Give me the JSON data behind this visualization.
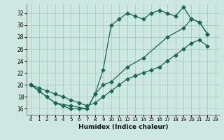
{
  "xlabel": "Humidex (Indice chaleur)",
  "background_color": "#cce8e0",
  "grid_color": "#aaccbb",
  "line_color": "#1a6655",
  "xlim": [
    -0.5,
    23.5
  ],
  "ylim": [
    15.0,
    33.5
  ],
  "yticks": [
    16,
    18,
    20,
    22,
    24,
    26,
    28,
    30,
    32
  ],
  "xticks": [
    0,
    1,
    2,
    3,
    4,
    5,
    6,
    7,
    8,
    9,
    10,
    11,
    12,
    13,
    14,
    15,
    16,
    17,
    18,
    19,
    20,
    21,
    22,
    23
  ],
  "line1_x": [
    0,
    1,
    2,
    3,
    4,
    5,
    6,
    7,
    8,
    9,
    10,
    11,
    12,
    13,
    14,
    15,
    16,
    17,
    18,
    19,
    20,
    21,
    22
  ],
  "line1_y": [
    20,
    19,
    18,
    17,
    16.5,
    16,
    16,
    16,
    18.5,
    22.5,
    30,
    31,
    32,
    31.5,
    31,
    32,
    32.5,
    32,
    31.5,
    33,
    31,
    30.5,
    28.5
  ],
  "line2_x": [
    0,
    1,
    2,
    3,
    4,
    5,
    6,
    7,
    8,
    9,
    10,
    11,
    12,
    13,
    14,
    15,
    16,
    17,
    18,
    19,
    20,
    21,
    22
  ],
  "line2_y": [
    20,
    19.5,
    19,
    18.5,
    18,
    17.5,
    17,
    16.5,
    17,
    18,
    19,
    20,
    21,
    21.5,
    22,
    22.5,
    23,
    24,
    25,
    26,
    27,
    27.5,
    26.5
  ],
  "line3_x": [
    0,
    3,
    5,
    7,
    8,
    9,
    10,
    12,
    14,
    17,
    19,
    20,
    21,
    22
  ],
  "line3_y": [
    20,
    17,
    16.5,
    16,
    18.5,
    20,
    20.5,
    23,
    24.5,
    28,
    29.5,
    31,
    30.5,
    28.5
  ],
  "marker": "D",
  "markersize": 2.5,
  "linewidth": 0.9
}
